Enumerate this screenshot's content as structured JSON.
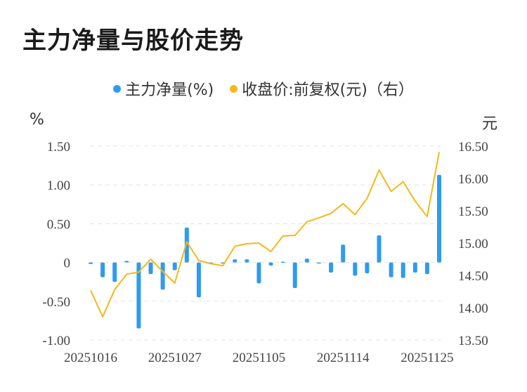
{
  "title": "主力净量与股价走势",
  "legend": {
    "bar_label": "主力净量(%)",
    "line_label": "收盘价:前复权(元)（右）",
    "bar_color": "#2f9bf0",
    "line_color": "#f5b81a"
  },
  "units": {
    "left": "%",
    "right": "元"
  },
  "chart_data": {
    "type": "bar+line",
    "x_tick_labels": [
      "20251016",
      "20251027",
      "20251105",
      "20251114",
      "20251125"
    ],
    "x_tick_indices": [
      0,
      7,
      14,
      21,
      28
    ],
    "y_left": {
      "ticks": [
        "1.50",
        "1.00",
        "0.50",
        "0",
        "-0.50",
        "-1.00"
      ],
      "values": [
        1.5,
        1.0,
        0.5,
        0,
        -0.5,
        -1.0
      ],
      "range": [
        -1.0,
        1.5
      ]
    },
    "y_right": {
      "ticks": [
        "16.50",
        "16.00",
        "15.50",
        "15.00",
        "14.50",
        "14.00",
        "13.50"
      ],
      "values": [
        16.5,
        16.0,
        15.5,
        15.0,
        14.5,
        14.0,
        13.5
      ],
      "range": [
        13.5,
        16.5
      ]
    },
    "series": [
      {
        "name": "主力净量(%)",
        "axis": "left",
        "kind": "bar",
        "values": [
          -0.02,
          -0.19,
          -0.25,
          0.02,
          -0.85,
          -0.15,
          -0.35,
          -0.1,
          0.45,
          -0.45,
          -0.02,
          0.0,
          0.04,
          0.04,
          -0.27,
          -0.04,
          0.01,
          -0.33,
          0.05,
          -0.01,
          -0.13,
          0.23,
          -0.17,
          -0.14,
          0.35,
          -0.19,
          -0.2,
          -0.13,
          -0.15,
          1.13
        ]
      },
      {
        "name": "收盘价:前复权(元)（右）",
        "axis": "right",
        "kind": "line",
        "values": [
          14.27,
          13.86,
          14.28,
          14.52,
          14.55,
          14.75,
          14.56,
          14.38,
          15.02,
          14.73,
          14.68,
          14.65,
          14.95,
          14.99,
          15.0,
          14.87,
          15.11,
          15.12,
          15.33,
          15.39,
          15.46,
          15.61,
          15.44,
          15.69,
          16.13,
          15.8,
          15.95,
          15.65,
          15.41,
          16.41
        ]
      }
    ]
  }
}
